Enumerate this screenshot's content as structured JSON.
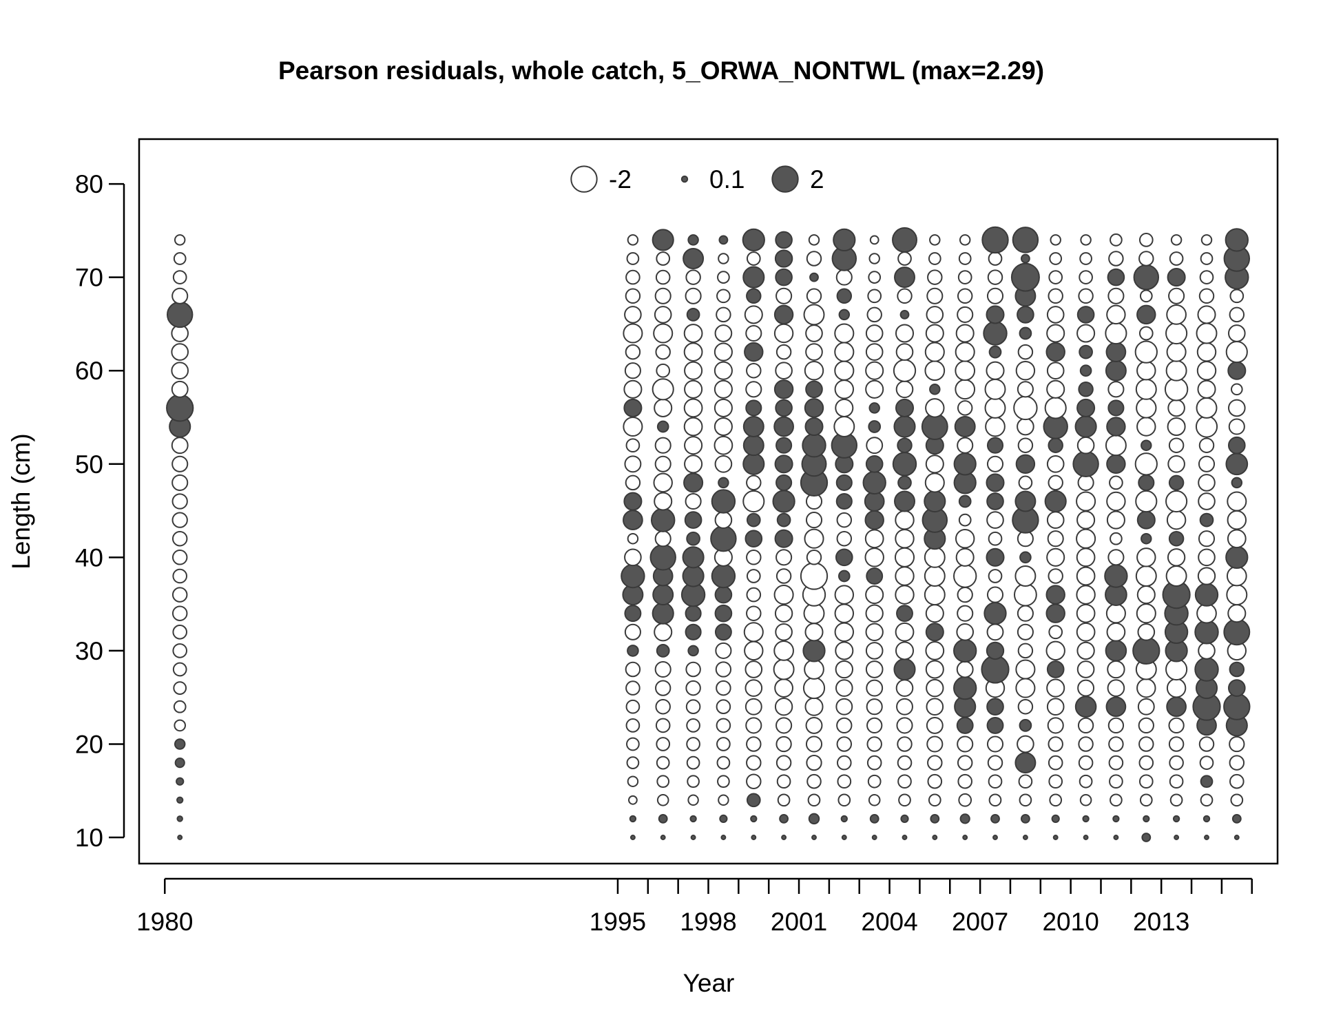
{
  "chart_data": {
    "type": "bubble",
    "title": "Pearson residuals, whole catch, 5_ORWA_NONTWL (max=2.29)",
    "xlabel": "Year",
    "ylabel": "Length (cm)",
    "xlim": [
      1979.15,
      2016.85
    ],
    "ylim": [
      7.2,
      84.8
    ],
    "x_ticks": [
      1980,
      1995,
      1996,
      1997,
      1998,
      1999,
      2000,
      2001,
      2002,
      2003,
      2004,
      2005,
      2006,
      2007,
      2008,
      2009,
      2010,
      2011,
      2012,
      2013,
      2014,
      2015,
      2016
    ],
    "x_tick_labels": [
      "1980",
      "",
      "",
      "",
      "",
      "",
      "",
      "",
      "",
      "",
      "",
      "",
      "",
      "",
      "",
      "",
      "",
      "",
      "",
      "",
      "",
      "",
      ""
    ],
    "x_tick_label_list": [
      "1980",
      "1995",
      "1998",
      "2001",
      "2004",
      "2007",
      "2010",
      "2013"
    ],
    "x_labeled_ticks": [
      1980,
      1995,
      1998,
      2001,
      2004,
      2007,
      2010,
      2013
    ],
    "y_ticks": [
      10,
      20,
      30,
      40,
      50,
      60,
      70,
      80
    ],
    "y_tick_labels": [
      "10",
      "20",
      "30",
      "40",
      "50",
      "60",
      "70",
      "80"
    ],
    "legend": {
      "placement": "top-center",
      "entries": [
        {
          "label": "-2",
          "value": -2
        },
        {
          "label": "0.1",
          "value": 0.1
        },
        {
          "label": "2",
          "value": 2
        }
      ]
    },
    "colors": {
      "positive_fill": "#555555",
      "negative_fill": "#ffffff",
      "stroke": "#3a3a3a"
    },
    "max_abs_residual": 2.29,
    "lengths": [
      10,
      12,
      14,
      16,
      18,
      20,
      22,
      24,
      26,
      28,
      30,
      32,
      34,
      36,
      38,
      40,
      42,
      44,
      46,
      48,
      50,
      52,
      54,
      56,
      58,
      60,
      62,
      64,
      66,
      68,
      70,
      72,
      74
    ],
    "years": [
      1980.5,
      1995.5,
      1996.5,
      1997.5,
      1998.5,
      1999.5,
      2000.5,
      2001.5,
      2002.5,
      2003.5,
      2004.5,
      2005.5,
      2006.5,
      2007.5,
      2008.5,
      2009.5,
      2010.5,
      2011.5,
      2012.5,
      2013.5,
      2014.5,
      2015.5
    ],
    "residuals": [
      [
        0.05,
        0.08,
        0.1,
        0.15,
        0.25,
        0.3,
        -0.35,
        -0.4,
        -0.45,
        -0.5,
        -0.55,
        -0.55,
        -0.6,
        -0.6,
        -0.55,
        -0.6,
        -0.6,
        -0.65,
        -0.65,
        -0.7,
        -0.7,
        -0.75,
        1.3,
        2.1,
        -0.75,
        -0.8,
        -0.8,
        -0.8,
        1.9,
        -0.7,
        -0.5,
        -0.4,
        -0.3
      ],
      [
        0.05,
        0.1,
        -0.2,
        -0.3,
        -0.4,
        -0.45,
        -0.5,
        -0.5,
        -0.55,
        -0.6,
        0.35,
        -0.7,
        0.75,
        1.2,
        1.6,
        -0.8,
        -0.3,
        1.1,
        0.9,
        -0.6,
        -0.75,
        -0.5,
        -1.05,
        0.9,
        -0.9,
        -0.7,
        -0.6,
        -1.05,
        -0.8,
        -0.6,
        -0.55,
        -0.4,
        -0.3
      ],
      [
        0.05,
        0.2,
        -0.35,
        -0.4,
        -0.45,
        -0.5,
        -0.55,
        -0.6,
        -0.65,
        -0.7,
        0.45,
        -0.9,
        1.3,
        1.2,
        1.1,
        1.9,
        -0.7,
        1.6,
        -0.9,
        -1.0,
        -0.7,
        -0.7,
        0.35,
        -0.9,
        -1.3,
        -0.5,
        -0.6,
        -1.05,
        -0.8,
        -0.7,
        -0.55,
        -0.5,
        1.3
      ],
      [
        0.05,
        0.1,
        -0.3,
        -0.4,
        -0.45,
        -0.5,
        -0.5,
        -0.55,
        -0.6,
        -0.6,
        0.3,
        0.7,
        0.7,
        1.6,
        1.3,
        1.3,
        0.5,
        0.8,
        -0.7,
        1.05,
        -0.9,
        -0.9,
        -0.95,
        -0.95,
        -0.9,
        -0.9,
        -0.95,
        -0.95,
        0.45,
        -0.7,
        -0.6,
        1.2,
        0.3
      ],
      [
        0.05,
        0.15,
        -0.3,
        -0.4,
        -0.45,
        -0.5,
        -0.55,
        -0.55,
        -0.6,
        -0.65,
        -0.7,
        0.75,
        0.8,
        0.8,
        1.6,
        -0.9,
        1.9,
        -0.8,
        1.6,
        0.3,
        -0.8,
        -0.95,
        -0.9,
        -0.9,
        -0.9,
        -0.9,
        -0.9,
        -0.8,
        -0.6,
        -0.5,
        -0.4,
        -0.3,
        0.2
      ],
      [
        0.05,
        0.1,
        0.5,
        -0.6,
        -0.6,
        -0.6,
        -0.7,
        -0.75,
        -0.8,
        -0.8,
        -1.0,
        -1.05,
        -0.6,
        -0.55,
        -0.5,
        -0.6,
        0.8,
        0.5,
        -1.3,
        -0.6,
        1.3,
        1.2,
        1.2,
        0.7,
        -0.7,
        -0.6,
        1.0,
        -0.7,
        -0.9,
        0.6,
        1.3,
        -0.5,
        1.4
      ],
      [
        0.05,
        0.2,
        -0.4,
        -0.5,
        -0.6,
        -0.65,
        -0.7,
        -0.85,
        -0.95,
        -1.2,
        -1.1,
        -0.8,
        -0.85,
        -1.05,
        -0.6,
        -0.7,
        0.9,
        0.5,
        1.4,
        0.7,
        0.9,
        0.7,
        1.1,
        0.8,
        1.0,
        -0.8,
        -0.6,
        -1.0,
        1.0,
        -0.7,
        0.8,
        0.85,
        0.8
      ],
      [
        0.05,
        0.3,
        -0.4,
        -0.55,
        -0.65,
        -0.7,
        -0.75,
        -0.9,
        -1.3,
        -1.1,
        1.4,
        -0.9,
        -1.2,
        -1.5,
        -2.1,
        -0.6,
        -1.05,
        -0.7,
        -0.7,
        2.1,
        1.75,
        1.6,
        0.9,
        1.0,
        0.8,
        -1.0,
        -0.8,
        -0.8,
        -1.2,
        -0.6,
        0.2,
        -0.6,
        -0.3
      ],
      [
        0.05,
        0.1,
        -0.4,
        -0.5,
        -0.55,
        -0.6,
        -0.65,
        -0.75,
        -0.8,
        -0.85,
        -0.9,
        -1.0,
        -1.0,
        -1.0,
        0.35,
        0.8,
        -0.6,
        -0.6,
        0.7,
        0.7,
        0.9,
        1.9,
        -1.2,
        -0.9,
        -1.0,
        -1.05,
        -1.05,
        -1.05,
        0.3,
        0.6,
        -0.7,
        1.7,
        1.4
      ],
      [
        0.05,
        0.2,
        -0.35,
        -0.45,
        -0.55,
        -0.6,
        -0.65,
        -0.7,
        -0.75,
        -0.8,
        -0.8,
        -0.85,
        -0.85,
        -0.9,
        0.75,
        -1.0,
        -0.95,
        1.0,
        1.1,
        1.5,
        0.8,
        -0.75,
        0.4,
        0.3,
        -0.9,
        -0.9,
        -0.8,
        -0.8,
        -0.6,
        -0.5,
        -0.4,
        -0.3,
        -0.2
      ],
      [
        0.05,
        0.15,
        -0.4,
        -0.5,
        -0.55,
        -0.6,
        -0.7,
        -0.75,
        -0.8,
        1.3,
        -0.9,
        -0.95,
        0.75,
        -1.0,
        -1.0,
        -1.05,
        -1.0,
        -1.0,
        1.2,
        0.5,
        1.6,
        0.6,
        1.3,
        0.9,
        -0.8,
        -1.4,
        -0.8,
        -0.9,
        0.2,
        -0.6,
        1.2,
        -0.5,
        1.75
      ],
      [
        0.05,
        0.2,
        -0.4,
        -0.55,
        -0.6,
        -0.7,
        -0.75,
        -0.8,
        -0.85,
        -0.9,
        -0.95,
        0.9,
        -0.9,
        -1.2,
        -1.2,
        -1.2,
        1.3,
        1.8,
        1.3,
        -1.05,
        -0.9,
        0.9,
        1.95,
        -1.0,
        0.3,
        -1.1,
        -1.05,
        -0.9,
        -0.8,
        -0.7,
        -0.6,
        -0.4,
        -0.3
      ],
      [
        0.05,
        0.25,
        -0.45,
        -0.55,
        -0.6,
        -0.7,
        0.75,
        1.3,
        1.5,
        -0.75,
        1.5,
        -0.8,
        -0.7,
        -0.65,
        -1.5,
        -0.9,
        -1.0,
        -0.4,
        0.4,
        1.4,
        1.4,
        -0.7,
        1.2,
        -0.6,
        -1.1,
        -1.1,
        -1.05,
        -0.9,
        -0.7,
        -0.6,
        -0.5,
        -0.4,
        -0.3
      ],
      [
        0.05,
        0.2,
        -0.4,
        -0.5,
        -0.6,
        -0.7,
        0.75,
        0.8,
        -1.0,
        2.2,
        0.85,
        -0.75,
        1.4,
        -0.7,
        -0.5,
        0.9,
        -0.5,
        -0.8,
        0.8,
        0.9,
        -0.7,
        0.7,
        -1.1,
        -1.2,
        -1.2,
        -0.9,
        0.4,
        1.6,
        0.9,
        -0.7,
        -0.6,
        -0.5,
        2.0
      ],
      [
        0.05,
        0.2,
        -0.4,
        -0.5,
        1.2,
        -0.8,
        0.4,
        -0.6,
        -1.05,
        -1.05,
        -0.6,
        -0.7,
        -0.7,
        -1.45,
        -1.2,
        0.35,
        -0.7,
        2.0,
        1.2,
        -0.5,
        1.0,
        -0.6,
        -0.8,
        -1.6,
        -0.7,
        -1.0,
        -0.6,
        0.4,
        0.8,
        1.2,
        2.29,
        0.2,
        1.9
      ],
      [
        0.05,
        0.15,
        -0.4,
        -0.5,
        -0.55,
        -0.6,
        -0.7,
        -0.8,
        -0.9,
        0.8,
        -1.0,
        -0.5,
        1.0,
        1.0,
        -0.6,
        -0.9,
        -0.7,
        -0.8,
        1.3,
        -0.6,
        -0.8,
        0.6,
        1.7,
        -1.3,
        -0.9,
        -0.8,
        1.0,
        -0.9,
        -0.8,
        -0.6,
        -0.5,
        -0.4,
        -0.3
      ],
      [
        0.05,
        0.1,
        -0.35,
        -0.45,
        -0.55,
        -0.6,
        -0.65,
        1.25,
        -0.75,
        -0.8,
        -0.85,
        -0.95,
        -0.95,
        -1.0,
        -0.95,
        -0.95,
        -1.05,
        -0.9,
        -1.05,
        -0.7,
        1.9,
        -0.8,
        1.3,
        0.9,
        0.6,
        0.35,
        0.5,
        -0.9,
        0.8,
        -0.6,
        -0.5,
        -0.4,
        -0.3
      ],
      [
        0.05,
        0.1,
        -0.4,
        -0.5,
        -0.55,
        -0.6,
        -0.65,
        1.1,
        -0.8,
        -0.85,
        1.25,
        -0.95,
        -1.05,
        1.35,
        1.5,
        -0.7,
        -0.4,
        -0.9,
        -1.0,
        -0.5,
        1.0,
        -1.2,
        1.0,
        0.7,
        -0.7,
        1.2,
        1.1,
        -1.3,
        -1.0,
        -0.7,
        0.8,
        -0.6,
        -0.4
      ],
      [
        0.2,
        0.1,
        -0.4,
        -0.5,
        -0.55,
        -0.6,
        -0.65,
        -0.75,
        -1.0,
        -1.2,
        2.1,
        -0.8,
        -1.05,
        -0.9,
        -1.2,
        -1.0,
        0.3,
        0.9,
        -1.3,
        0.7,
        -1.4,
        0.3,
        -1.0,
        -1.15,
        -1.2,
        -1.0,
        -1.4,
        -0.5,
        1.0,
        -0.4,
        1.8,
        -0.6,
        -0.5
      ],
      [
        0.05,
        0.1,
        -0.4,
        -0.5,
        -0.55,
        -0.6,
        -0.65,
        1.1,
        -1.0,
        -1.3,
        1.4,
        1.5,
        1.6,
        2.2,
        -1.2,
        -0.85,
        0.6,
        -1.0,
        -1.3,
        0.6,
        -0.8,
        -0.6,
        -0.9,
        -0.8,
        -1.5,
        -1.2,
        -1.05,
        -1.3,
        -1.1,
        -0.7,
        0.9,
        -0.5,
        -0.3
      ],
      [
        0.05,
        0.1,
        -0.4,
        0.4,
        -0.5,
        -0.6,
        1.1,
        2.2,
        1.3,
        1.6,
        -0.8,
        1.6,
        -1.1,
        1.5,
        -0.85,
        -0.8,
        -0.7,
        0.5,
        -0.8,
        -0.8,
        -0.7,
        -0.6,
        -1.3,
        -1.2,
        -0.9,
        -1.0,
        -1.0,
        -1.2,
        -0.9,
        -0.6,
        -0.5,
        -0.4,
        -0.3
      ],
      [
        0.05,
        0.2,
        -0.4,
        -0.55,
        -0.6,
        -0.65,
        1.3,
        2.0,
        0.8,
        0.6,
        -1.0,
        1.95,
        -0.9,
        -1.2,
        -1.1,
        1.4,
        -0.95,
        -1.0,
        -1.05,
        0.3,
        1.35,
        0.8,
        -0.7,
        -0.8,
        -0.35,
        0.9,
        -1.3,
        -0.8,
        -0.6,
        -0.5,
        1.6,
        1.9,
        1.5
      ]
    ]
  }
}
